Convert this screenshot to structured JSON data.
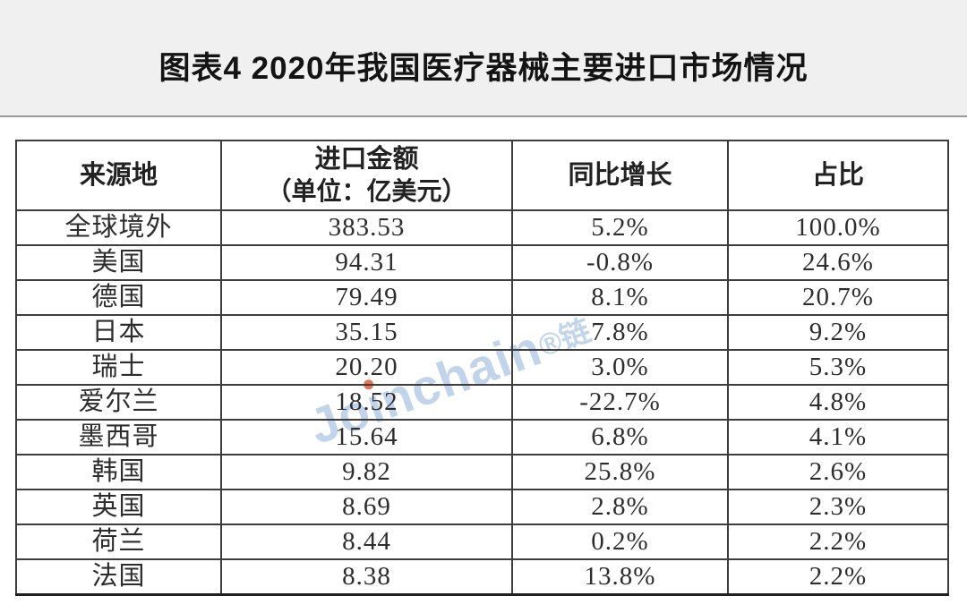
{
  "header": {
    "title": "图表4 2020年我国医疗器械主要进口市场情况"
  },
  "chart_data": {
    "type": "table",
    "title": "图表4 2020年我国医疗器械主要进口市场情况",
    "columns": [
      {
        "label": "来源地",
        "unit": ""
      },
      {
        "label": "进口金额",
        "unit": "（单位：亿美元）"
      },
      {
        "label": "同比增长",
        "unit": ""
      },
      {
        "label": "占比",
        "unit": ""
      }
    ],
    "rows": [
      {
        "origin": "全球境外",
        "amount": "383.53",
        "growth": "5.2%",
        "share": "100.0%"
      },
      {
        "origin": "美国",
        "amount": "94.31",
        "growth": "-0.8%",
        "share": "24.6%"
      },
      {
        "origin": "德国",
        "amount": "79.49",
        "growth": "8.1%",
        "share": "20.7%"
      },
      {
        "origin": "日本",
        "amount": "35.15",
        "growth": "7.8%",
        "share": "9.2%"
      },
      {
        "origin": "瑞士",
        "amount": "20.20",
        "growth": "3.0%",
        "share": "5.3%"
      },
      {
        "origin": "爱尔兰",
        "amount": "18.52",
        "growth": "-22.7%",
        "share": "4.8%"
      },
      {
        "origin": "墨西哥",
        "amount": "15.64",
        "growth": "6.8%",
        "share": "4.1%"
      },
      {
        "origin": "韩国",
        "amount": "9.82",
        "growth": "25.8%",
        "share": "2.6%"
      },
      {
        "origin": "英国",
        "amount": "8.69",
        "growth": "2.8%",
        "share": "2.3%"
      },
      {
        "origin": "荷兰",
        "amount": "8.44",
        "growth": "0.2%",
        "share": "2.2%"
      },
      {
        "origin": "法国",
        "amount": "8.38",
        "growth": "13.8%",
        "share": "2.2%"
      }
    ],
    "notes": {
      "amount_unit": "亿美元",
      "year": "2020"
    }
  },
  "watermark": {
    "part1": "Jo",
    "part2": "ı",
    "part3": "nchain",
    "suffix": "®链",
    "color": "#8aacd6",
    "dot_color": "#e05a3a"
  },
  "colors": {
    "title_band_bg": "#f0f0f1",
    "band_divider": "#9b9b9b",
    "table_border": "#3d3d3d",
    "text": "#2d2d2d",
    "page_bg": "#ffffff"
  }
}
